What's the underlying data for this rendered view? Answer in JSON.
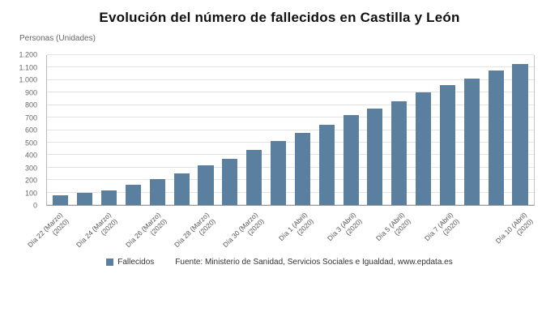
{
  "title": "Evolución del número de fallecidos en Castilla y León",
  "y_axis_title": "Personas (Unidades)",
  "legend": {
    "label": "Fallecidos",
    "color": "#5b7f9e"
  },
  "source": "Fuente: Ministerio de Sanidad, Servicios Sociales e Igualdad, www.epdata.es",
  "chart_data": {
    "type": "bar",
    "title": "Evolución del número de fallecidos en Castilla y León",
    "xlabel": "",
    "ylabel": "Personas (Unidades)",
    "ylim": [
      0,
      1200
    ],
    "grid": true,
    "legend_position": "bottom",
    "bar_color": "#5b7f9e",
    "y_ticks": [
      "0",
      "100",
      "200",
      "300",
      "400",
      "500",
      "600",
      "700",
      "800",
      "900",
      "1.000",
      "1.100",
      "1.200"
    ],
    "categories": [
      "Día 22 (Marzo)\n(2020)",
      "",
      "Día 24 (Marzo)\n(2020)",
      "",
      "Día 26 (Marzo)\n(2020)",
      "",
      "Día 28 (Marzo)\n(2020)",
      "",
      "Día 30 (Marzo)\n(2020)",
      "",
      "Día 1 (Abril)\n(2020)",
      "",
      "Día 3 (Abril)\n(2020)",
      "",
      "Día 5 (Abril)\n(2020)",
      "",
      "Día 7 (Abril)\n(2020)",
      "",
      "",
      "Día 10 (Abril)\n(2020)"
    ],
    "series": [
      {
        "name": "Fallecidos",
        "values": [
          78,
          98,
          120,
          160,
          205,
          250,
          320,
          372,
          440,
          510,
          575,
          640,
          720,
          770,
          830,
          900,
          960,
          1010,
          1075,
          1130
        ]
      }
    ]
  }
}
